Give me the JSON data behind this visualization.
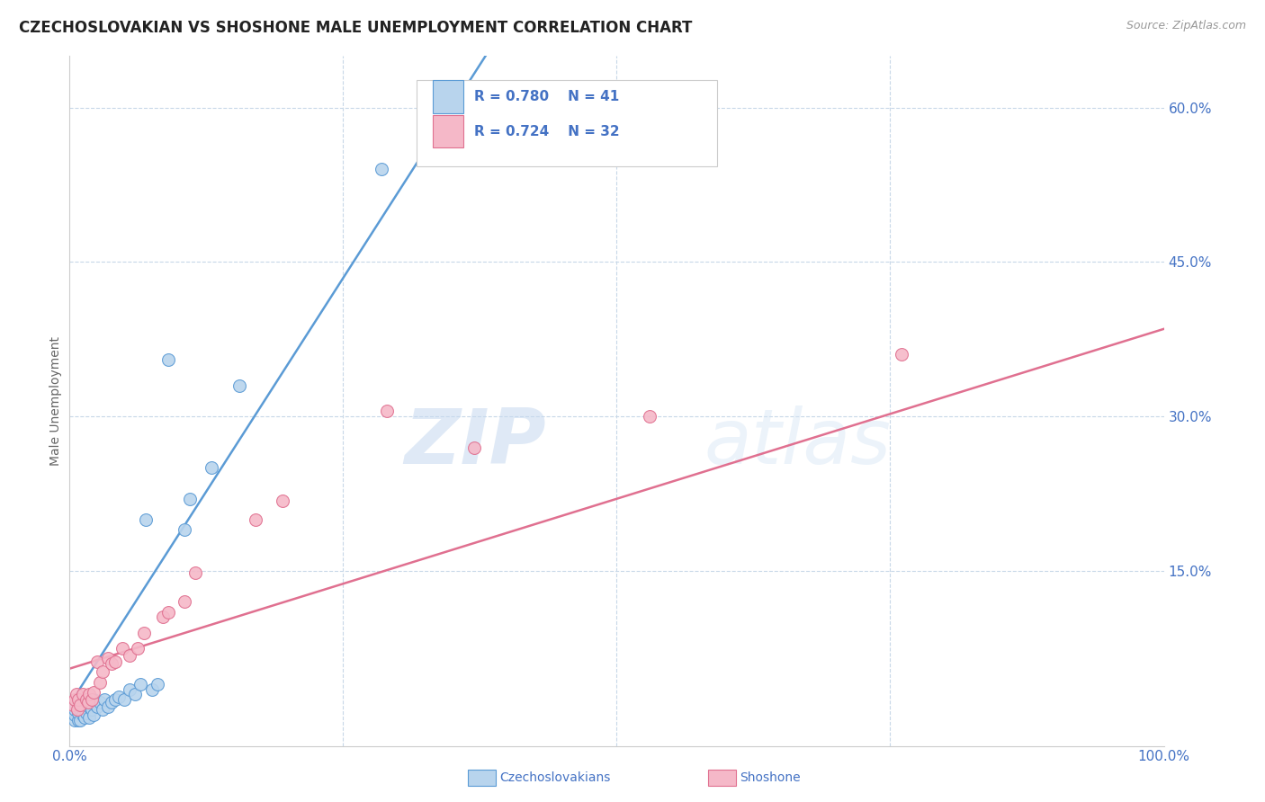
{
  "title": "CZECHOSLOVAKIAN VS SHOSHONE MALE UNEMPLOYMENT CORRELATION CHART",
  "source": "Source: ZipAtlas.com",
  "ylabel": "Male Unemployment",
  "xlim": [
    0.0,
    1.0
  ],
  "ylim": [
    -0.02,
    0.65
  ],
  "ytick_positions": [
    0.15,
    0.3,
    0.45,
    0.6
  ],
  "ytick_labels": [
    "15.0%",
    "30.0%",
    "45.0%",
    "60.0%"
  ],
  "legend_r1": "R = 0.780",
  "legend_n1": "N = 41",
  "legend_r2": "R = 0.724",
  "legend_n2": "N = 32",
  "color_czech": "#b8d4ed",
  "color_shoshone": "#f5b8c8",
  "color_czech_line": "#5b9bd5",
  "color_shoshone_line": "#e07090",
  "color_text_blue": "#4472c4",
  "watermark_zip": "ZIP",
  "watermark_atlas": "atlas",
  "background": "#ffffff",
  "grid_color": "#c8d8e8",
  "czech_scatter_x": [
    0.005,
    0.005,
    0.005,
    0.005,
    0.008,
    0.008,
    0.008,
    0.01,
    0.01,
    0.01,
    0.012,
    0.012,
    0.014,
    0.015,
    0.015,
    0.018,
    0.018,
    0.02,
    0.022,
    0.022,
    0.025,
    0.028,
    0.03,
    0.032,
    0.035,
    0.038,
    0.042,
    0.045,
    0.05,
    0.055,
    0.06,
    0.065,
    0.07,
    0.075,
    0.08,
    0.09,
    0.105,
    0.11,
    0.13,
    0.155,
    0.285
  ],
  "czech_scatter_y": [
    0.005,
    0.01,
    0.015,
    0.02,
    0.005,
    0.012,
    0.02,
    0.005,
    0.015,
    0.022,
    0.01,
    0.018,
    0.008,
    0.012,
    0.022,
    0.008,
    0.018,
    0.015,
    0.01,
    0.025,
    0.018,
    0.022,
    0.015,
    0.025,
    0.018,
    0.022,
    0.025,
    0.028,
    0.025,
    0.035,
    0.03,
    0.04,
    0.2,
    0.035,
    0.04,
    0.355,
    0.19,
    0.22,
    0.25,
    0.33,
    0.54
  ],
  "shoshone_scatter_x": [
    0.003,
    0.005,
    0.006,
    0.007,
    0.008,
    0.01,
    0.012,
    0.015,
    0.017,
    0.018,
    0.02,
    0.022,
    0.025,
    0.028,
    0.03,
    0.035,
    0.038,
    0.042,
    0.048,
    0.055,
    0.062,
    0.068,
    0.085,
    0.09,
    0.105,
    0.115,
    0.17,
    0.195,
    0.29,
    0.37,
    0.53,
    0.76
  ],
  "shoshone_scatter_y": [
    0.02,
    0.025,
    0.03,
    0.015,
    0.025,
    0.02,
    0.03,
    0.025,
    0.022,
    0.03,
    0.025,
    0.032,
    0.062,
    0.042,
    0.052,
    0.065,
    0.06,
    0.062,
    0.075,
    0.068,
    0.075,
    0.09,
    0.105,
    0.11,
    0.12,
    0.148,
    0.2,
    0.218,
    0.305,
    0.27,
    0.3,
    0.36
  ],
  "czech_line_x": [
    0.0,
    0.38
  ],
  "czech_line_y": [
    0.02,
    0.65
  ],
  "shoshone_line_x": [
    0.0,
    1.0
  ],
  "shoshone_line_y": [
    0.055,
    0.385
  ]
}
